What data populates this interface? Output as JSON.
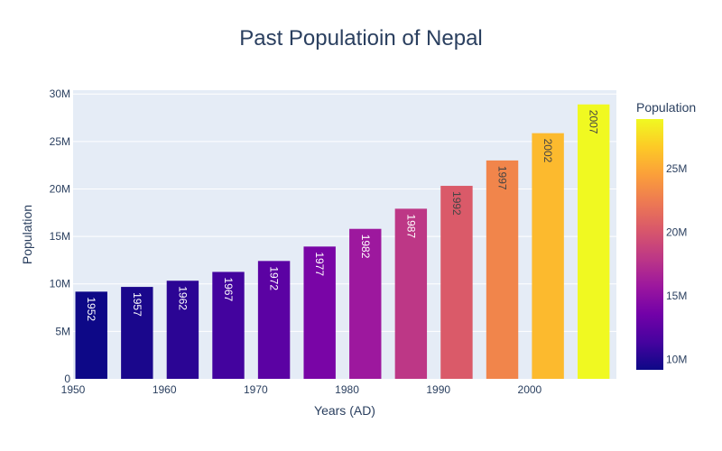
{
  "chart_data": {
    "type": "bar",
    "title": "Past Populatioin of Nepal",
    "xlabel": "Years (AD)",
    "ylabel": "Population",
    "x": [
      1952,
      1957,
      1962,
      1967,
      1972,
      1977,
      1982,
      1987,
      1992,
      1997,
      2002,
      2007
    ],
    "values": [
      9182536,
      9682338,
      10332057,
      11261690,
      12412593,
      13933198,
      15796314,
      17917180,
      20326209,
      23001113,
      25873917,
      28901790
    ],
    "bar_text": [
      "1952",
      "1957",
      "1962",
      "1967",
      "1972",
      "1977",
      "1982",
      "1987",
      "1992",
      "1997",
      "2002",
      "2007"
    ],
    "xlim": [
      1950,
      2009.5
    ],
    "ylim": [
      0,
      30400000
    ],
    "x_ticks": [
      1950,
      1960,
      1970,
      1980,
      1990,
      2000
    ],
    "x_tick_labels": [
      "1950",
      "1960",
      "1970",
      "1980",
      "1990",
      "2000"
    ],
    "y_ticks": [
      0,
      5000000,
      10000000,
      15000000,
      20000000,
      25000000,
      30000000
    ],
    "y_tick_labels": [
      "0",
      "5M",
      "10M",
      "15M",
      "20M",
      "25M",
      "30M"
    ],
    "grid": true,
    "colorbar": {
      "title": "Population",
      "range": [
        9182536,
        28901790
      ],
      "ticks": [
        10000000,
        15000000,
        20000000,
        25000000
      ],
      "tick_labels": [
        "10M",
        "15M",
        "20M",
        "25M"
      ],
      "colorscale": [
        "#0d0887",
        "#46039f",
        "#7201a8",
        "#9c179e",
        "#bd3786",
        "#d8576b",
        "#ed7953",
        "#fb9f3a",
        "#fdca26",
        "#f0f921"
      ]
    },
    "colors": {
      "plot_bg": "#e5ecf6",
      "grid": "#ffffff",
      "text": "#2a3f5f"
    }
  }
}
